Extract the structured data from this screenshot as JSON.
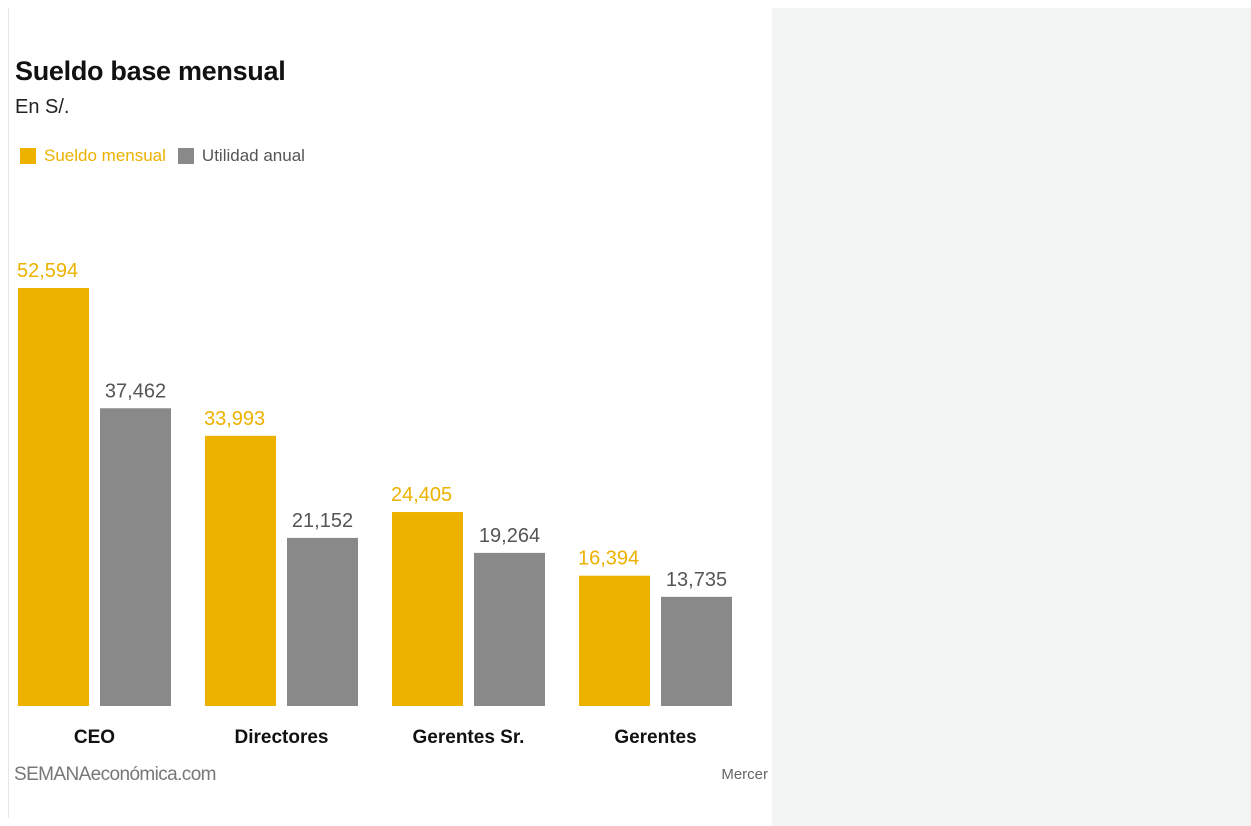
{
  "colors": {
    "sueldo": "#edb100",
    "utilidad": "#898989",
    "sueldo_label": "#edb100",
    "utilidad_label": "#555555",
    "category_label": "#111111"
  },
  "footer": {
    "brand": "SEMANAeconómica.com",
    "source": "Mercer"
  },
  "chart_data": {
    "type": "bar",
    "title": "Sueldo base mensual",
    "subtitle": "En S/.",
    "categories": [
      "CEO",
      "Directores",
      "Gerentes Sr.",
      "Gerentes"
    ],
    "series": [
      {
        "name": "Sueldo mensual",
        "values": [
          52594,
          33993,
          24405,
          16394
        ],
        "labels": [
          "52,594",
          "33,993",
          "24,405",
          "16,394"
        ]
      },
      {
        "name": "Utilidad anual",
        "values": [
          37462,
          21152,
          19264,
          13735
        ],
        "labels": [
          "37,462",
          "21,152",
          "19,264",
          "13,735"
        ]
      }
    ],
    "xlabel": "",
    "ylabel": "",
    "ylim": [
      0,
      52594
    ],
    "grid": false,
    "legend_position": "top-left"
  }
}
